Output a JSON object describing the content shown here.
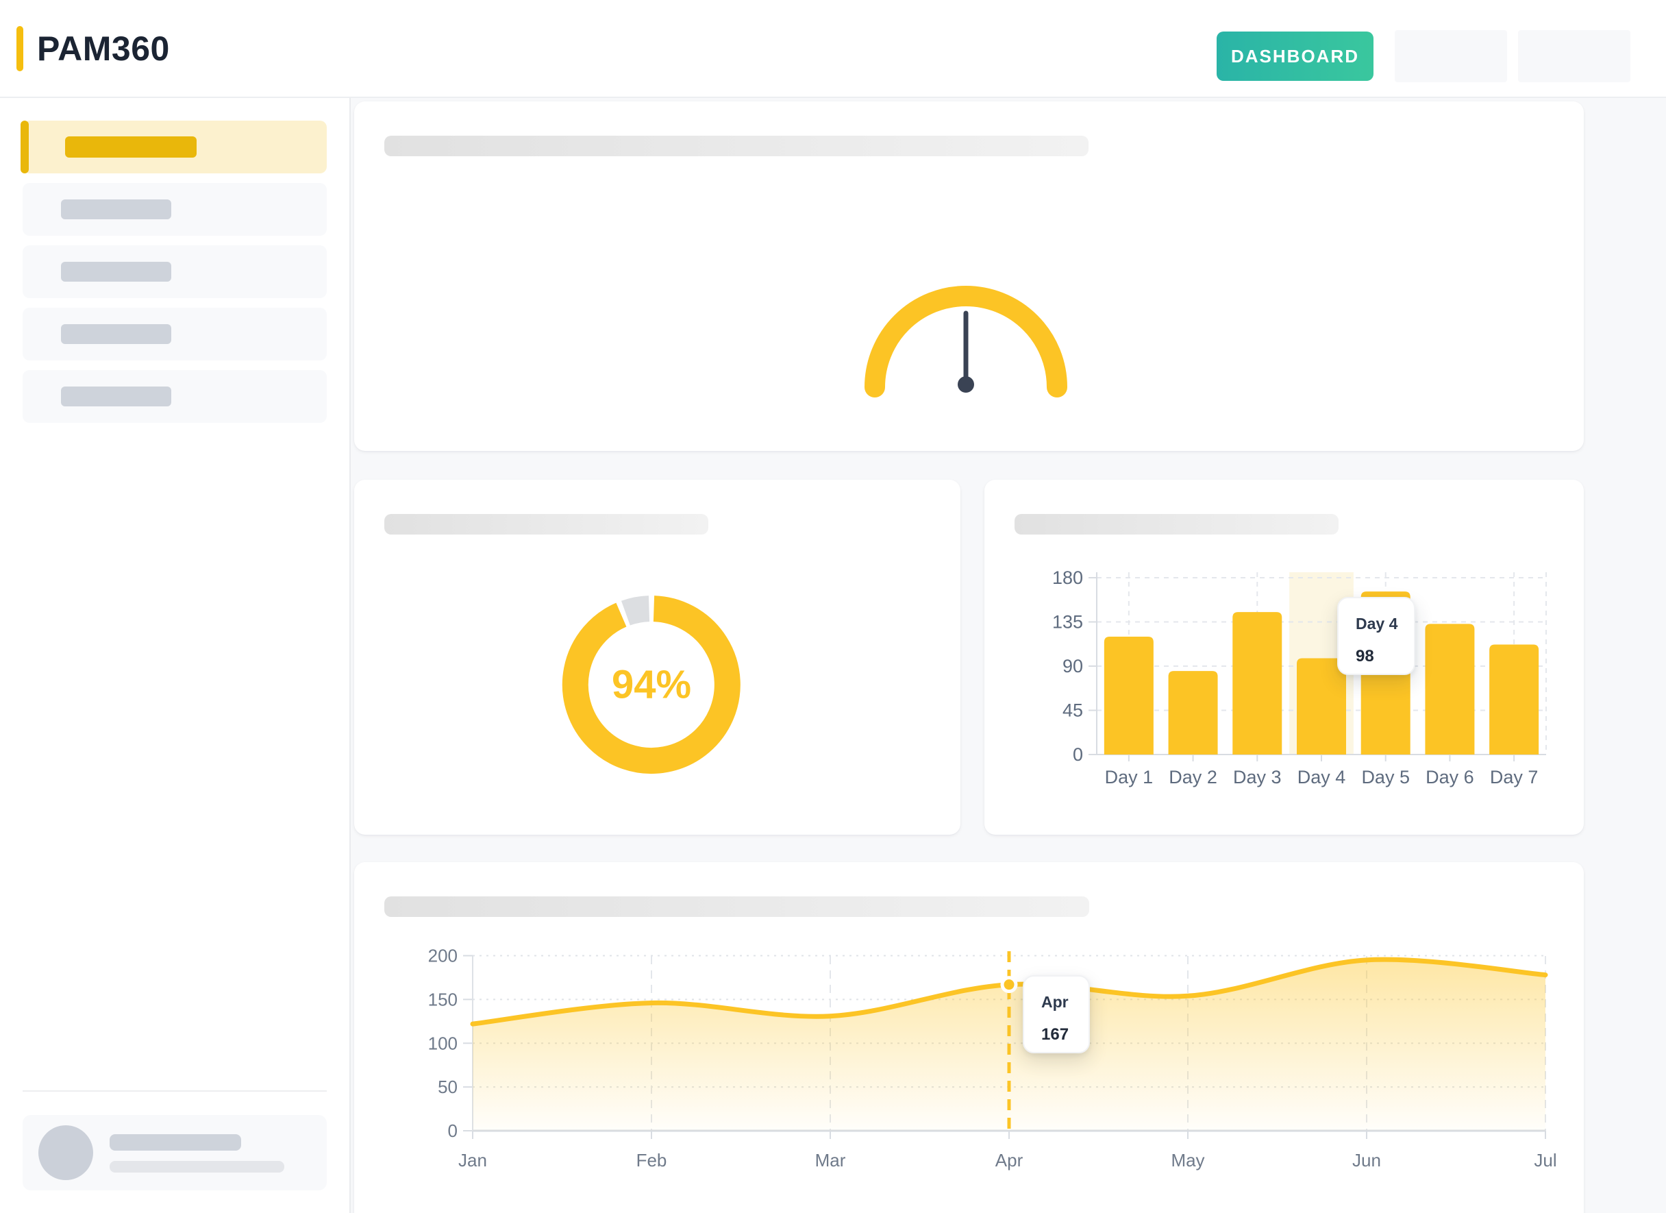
{
  "header": {
    "logo_text": "PAM360",
    "dashboard_button_label": "DASHBOARD"
  },
  "colors": {
    "brand_yellow": "#FCC425",
    "brand_gold": "#E9B70B",
    "teal_button_gradient": [
      "#2AB4A7",
      "#3AC79E"
    ],
    "navy_text": "#2E3A4E",
    "page_background": "#F7F8FA",
    "skeleton_gray": "#CED3DB",
    "axis_label_gray": "#5E6B7E"
  },
  "chart_data": [
    {
      "type": "gauge",
      "name": "gauge-chart",
      "min": 0,
      "max": 100,
      "needle_value": 50,
      "arc_color": "#FCC425",
      "needle_color": "#3A4354"
    },
    {
      "type": "donut",
      "name": "completion-donut",
      "values": [
        94,
        6
      ],
      "colors": [
        "#FCC425",
        "#DCDEE1"
      ],
      "center_label": "94%"
    },
    {
      "type": "bar",
      "name": "daily-bar-chart",
      "categories": [
        "Day 1",
        "Day 2",
        "Day 3",
        "Day 4",
        "Day 5",
        "Day 6",
        "Day 7"
      ],
      "values": [
        120,
        85,
        145,
        98,
        166,
        133,
        112
      ],
      "y_ticks": [
        0,
        45,
        90,
        135,
        180
      ],
      "ylim": [
        0,
        180
      ],
      "bar_color": "#FCC425",
      "highlighted_category": "Day 4",
      "highlight_band_color": "#FCF6E2",
      "grid": true,
      "tooltip": {
        "label": "Day 4",
        "value": "98"
      }
    },
    {
      "type": "area",
      "name": "monthly-trend-chart",
      "x": [
        "Jan",
        "Feb",
        "Mar",
        "Apr",
        "May",
        "Jun",
        "Jul"
      ],
      "values": [
        122,
        146,
        131,
        167,
        154,
        195,
        178
      ],
      "y_ticks": [
        0,
        50,
        100,
        150,
        200
      ],
      "ylim": [
        0,
        200
      ],
      "line_color": "#FCC425",
      "fill": "gradient-yellow-fade",
      "grid": true,
      "marker": {
        "x": "Apr",
        "value": 167
      },
      "tooltip": {
        "label": "Apr",
        "value": "167"
      }
    }
  ]
}
